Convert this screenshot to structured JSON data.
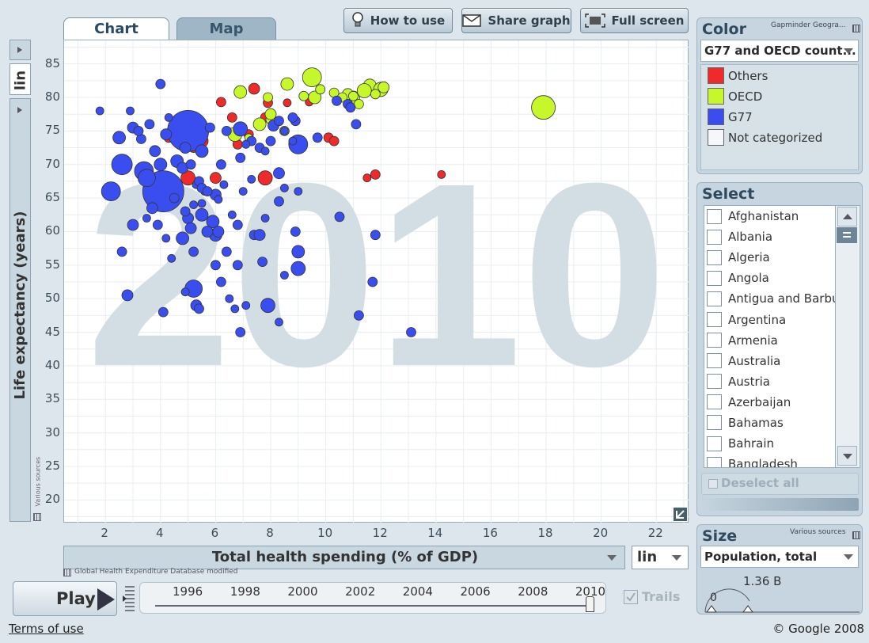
{
  "tabs": {
    "chart": "Chart",
    "map": "Map"
  },
  "toolbar": {
    "how_to_use": "How to use",
    "share_graph": "Share graph",
    "full_screen": "Full screen"
  },
  "chart_data": {
    "type": "scatter",
    "title": "",
    "year_watermark": "2010",
    "xlabel": "Total health spending (% of GDP)",
    "ylabel": "Life expectancy (years)",
    "xlim": [
      0.5,
      23.2
    ],
    "ylim": [
      16.5,
      88.5
    ],
    "x_ticks": [
      2,
      4,
      6,
      8,
      10,
      12,
      14,
      16,
      18,
      20,
      22
    ],
    "y_ticks": [
      20,
      25,
      30,
      35,
      40,
      45,
      50,
      55,
      60,
      65,
      70,
      75,
      80,
      85
    ],
    "x_scale": "lin",
    "y_scale": "lin",
    "grid": true,
    "series": [
      {
        "name": "Others",
        "color": "#ee2a2a",
        "points": [
          [
            5.0,
            68,
            9
          ],
          [
            6.0,
            68,
            7
          ],
          [
            5.5,
            73.5,
            8
          ],
          [
            4.3,
            74,
            6
          ],
          [
            6.2,
            79.3,
            6
          ],
          [
            6.6,
            77,
            6
          ],
          [
            7.8,
            68,
            9
          ],
          [
            7.9,
            79.2,
            6
          ],
          [
            7.4,
            81.3,
            7
          ],
          [
            8.6,
            79.2,
            5
          ],
          [
            9.4,
            79.3,
            5
          ],
          [
            10.1,
            74,
            6
          ],
          [
            10.3,
            73.5,
            6
          ],
          [
            11.5,
            68,
            5
          ],
          [
            11.8,
            68.5,
            6
          ],
          [
            14.2,
            68.5,
            5
          ],
          [
            4.4,
            66,
            6
          ],
          [
            6.8,
            73,
            6
          ],
          [
            7.2,
            74.5,
            6
          ],
          [
            5.2,
            72.5,
            6
          ],
          [
            7.8,
            77,
            6
          ]
        ]
      },
      {
        "name": "OECD",
        "color": "#c6f72a",
        "points": [
          [
            17.9,
            78.5,
            15
          ],
          [
            9.5,
            83,
            12
          ],
          [
            11.0,
            80,
            8
          ],
          [
            11.6,
            81.8,
            8
          ],
          [
            12.0,
            81.2,
            9
          ],
          [
            11.4,
            81,
            9
          ],
          [
            10.8,
            80.5,
            7
          ],
          [
            9.2,
            80.2,
            6
          ],
          [
            8.6,
            82,
            8
          ],
          [
            9.6,
            80,
            8
          ],
          [
            10.3,
            80.7,
            6
          ],
          [
            11.2,
            79,
            6
          ],
          [
            6.9,
            80.8,
            8
          ],
          [
            7.6,
            76,
            8
          ],
          [
            8.0,
            76.7,
            6
          ],
          [
            6.7,
            74.5,
            9
          ],
          [
            7.9,
            80,
            6
          ],
          [
            9.8,
            81.2,
            6
          ],
          [
            10.6,
            80,
            6
          ],
          [
            8.0,
            77.5,
            7
          ],
          [
            11.8,
            80.5,
            6
          ],
          [
            12.1,
            81.5,
            7
          ],
          [
            11.0,
            80.2,
            6
          ],
          [
            8.5,
            75,
            6
          ],
          [
            7.2,
            74,
            5
          ]
        ]
      },
      {
        "name": "G77",
        "color": "#3a4ef0",
        "points": [
          [
            5.0,
            75,
            26
          ],
          [
            4.1,
            66,
            26
          ],
          [
            2.2,
            66,
            12
          ],
          [
            2.6,
            70,
            13
          ],
          [
            3.4,
            69,
            12
          ],
          [
            3.5,
            68,
            11
          ],
          [
            5.2,
            51.5,
            11
          ],
          [
            7.9,
            49,
            9
          ],
          [
            9.0,
            73,
            12
          ],
          [
            9.0,
            54.5,
            9
          ],
          [
            5.9,
            61.5,
            8
          ],
          [
            6.0,
            59.5,
            8
          ],
          [
            5.5,
            62.5,
            8
          ],
          [
            5.0,
            62,
            7
          ],
          [
            4.8,
            59,
            8
          ],
          [
            5.3,
            49,
            7
          ],
          [
            5.7,
            60,
            7
          ],
          [
            4.2,
            74.5,
            7
          ],
          [
            3.0,
            75.5,
            7
          ],
          [
            2.5,
            74,
            8
          ],
          [
            3.3,
            73.8,
            6
          ],
          [
            1.8,
            78,
            5
          ],
          [
            2.9,
            78,
            5
          ],
          [
            4.0,
            82,
            6
          ],
          [
            3.6,
            76,
            6
          ],
          [
            4.3,
            77,
            5
          ],
          [
            3.2,
            75,
            6
          ],
          [
            5.8,
            75.5,
            6
          ],
          [
            6.4,
            75,
            6
          ],
          [
            6.6,
            62.5,
            5
          ],
          [
            6.1,
            60,
            7
          ],
          [
            7.4,
            59.5,
            6
          ],
          [
            5.2,
            57,
            6
          ],
          [
            4.4,
            56,
            5
          ],
          [
            6.0,
            55,
            6
          ],
          [
            2.6,
            57,
            6
          ],
          [
            2.8,
            50.5,
            7
          ],
          [
            4.1,
            48,
            6
          ],
          [
            4.9,
            51,
            5
          ],
          [
            6.7,
            48.5,
            5
          ],
          [
            6.9,
            45,
            6
          ],
          [
            8.3,
            46.5,
            5
          ],
          [
            6.8,
            55,
            6
          ],
          [
            7.7,
            55.5,
            6
          ],
          [
            8.5,
            53.5,
            5
          ],
          [
            11.2,
            47.5,
            6
          ],
          [
            11.7,
            52.5,
            6
          ],
          [
            13.1,
            45,
            6
          ],
          [
            11.8,
            59.5,
            6
          ],
          [
            10.5,
            62.2,
            6
          ],
          [
            9.0,
            66,
            5
          ],
          [
            8.3,
            68.7,
            7
          ],
          [
            8.5,
            66.5,
            5
          ],
          [
            7.0,
            66,
            5
          ],
          [
            7.3,
            67.8,
            5
          ],
          [
            6.3,
            67,
            5
          ],
          [
            5.6,
            66,
            5
          ],
          [
            5.3,
            67,
            5
          ],
          [
            5.5,
            72,
            8
          ],
          [
            6.2,
            70,
            6
          ],
          [
            6.9,
            71,
            6
          ],
          [
            7.6,
            72.5,
            6
          ],
          [
            8.1,
            75.8,
            7
          ],
          [
            7.3,
            73.5,
            6
          ],
          [
            8.0,
            73.5,
            6
          ],
          [
            8.8,
            73.5,
            5
          ],
          [
            9.7,
            74,
            6
          ],
          [
            10.4,
            79.5,
            6
          ],
          [
            10.8,
            79,
            6
          ],
          [
            10.9,
            78.5,
            6
          ],
          [
            11.1,
            76,
            6
          ],
          [
            8.9,
            76.5,
            6
          ],
          [
            8.5,
            75,
            5
          ],
          [
            7.8,
            72,
            5
          ],
          [
            7.1,
            73,
            5
          ],
          [
            6.9,
            75.3,
            9
          ],
          [
            8.3,
            76.5,
            6
          ],
          [
            8.8,
            77,
            6
          ],
          [
            4.6,
            70.5,
            8
          ],
          [
            4.8,
            69.5,
            7
          ],
          [
            4.0,
            70,
            8
          ],
          [
            3.8,
            72,
            7
          ],
          [
            4.9,
            72.5,
            7
          ],
          [
            5.1,
            70,
            6
          ],
          [
            4.5,
            65,
            6
          ],
          [
            4.9,
            63,
            6
          ],
          [
            5.1,
            60.5,
            7
          ],
          [
            4.2,
            59,
            5
          ],
          [
            3.5,
            62,
            5
          ],
          [
            3.0,
            61,
            7
          ],
          [
            3.7,
            63.5,
            7
          ],
          [
            3.9,
            61,
            6
          ],
          [
            5.4,
            67.5,
            6
          ],
          [
            5.5,
            66.5,
            6
          ],
          [
            6.0,
            65.5,
            7
          ],
          [
            5.7,
            66,
            6
          ],
          [
            6.1,
            64.8,
            5
          ],
          [
            5.5,
            64.2,
            5
          ],
          [
            5.2,
            64,
            5
          ],
          [
            7.6,
            59.5,
            7
          ],
          [
            6.4,
            57,
            6
          ],
          [
            6.2,
            52.5,
            6
          ],
          [
            5.4,
            48.5,
            6
          ],
          [
            6.5,
            50,
            5
          ],
          [
            7.1,
            49,
            5
          ],
          [
            9.0,
            57,
            8
          ],
          [
            8.9,
            60,
            6
          ],
          [
            8.3,
            64.5,
            6
          ],
          [
            7.8,
            62,
            5
          ],
          [
            6.8,
            61,
            6
          ]
        ]
      },
      {
        "name": "Not categorized",
        "color": "#f6f7fb",
        "points": []
      }
    ]
  },
  "chart_controls": {
    "y_axis_dropdown_icon": "triangle-right-icon",
    "y_scale": "lin",
    "x_scale": "lin",
    "y_source": "Various sources",
    "x_source": "Global Health Expenditure Database modified"
  },
  "color_panel": {
    "title": "Color",
    "credit": "Gapminder Geogra...",
    "selected": "G77 and OECD count...",
    "legend": [
      {
        "label": "Others",
        "color": "#ee2a2a"
      },
      {
        "label": "OECD",
        "color": "#c6f72a"
      },
      {
        "label": "G77",
        "color": "#3a4ef0"
      },
      {
        "label": "Not categorized",
        "color": "#f6f7fb"
      }
    ]
  },
  "select_panel": {
    "title": "Select",
    "countries": [
      "Afghanistan",
      "Albania",
      "Algeria",
      "Angola",
      "Antigua and Barbu...",
      "Argentina",
      "Armenia",
      "Australia",
      "Austria",
      "Azerbaijan",
      "Bahamas",
      "Bahrain",
      "Bangladesh"
    ],
    "deselect_all": "Deselect all"
  },
  "size_panel": {
    "title": "Size",
    "credit": "Various sources",
    "selected": "Population, total",
    "max_label": "1.36 B",
    "min_label": "0"
  },
  "playback": {
    "play": "Play",
    "years": [
      "1996",
      "1998",
      "2000",
      "2002",
      "2004",
      "2006",
      "2008",
      "2010"
    ],
    "trails": "Trails",
    "trails_checked": true
  },
  "footer": {
    "terms": "Terms of use",
    "copyright": "© Google 2008"
  }
}
